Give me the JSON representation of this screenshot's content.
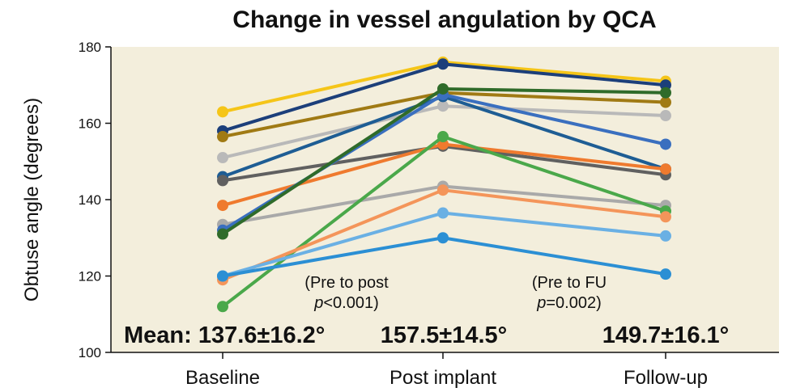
{
  "chart_data": {
    "type": "line",
    "title": "Change in vessel angulation by QCA",
    "ylabel": "Obtuse angle (degrees)",
    "xlabel": "",
    "categories": [
      "Baseline",
      "Post implant",
      "Follow-up"
    ],
    "ylim": [
      100,
      180
    ],
    "yticks": [
      100,
      120,
      140,
      160,
      180
    ],
    "grid": false,
    "background": "#f3eedc",
    "series": [
      {
        "color": "#f5c518",
        "values": [
          163,
          176,
          171
        ]
      },
      {
        "color": "#1c3f7a",
        "values": [
          158,
          175.5,
          170
        ]
      },
      {
        "color": "#a07a14",
        "values": [
          156.5,
          168,
          165.5
        ]
      },
      {
        "color": "#b9b9b9",
        "values": [
          151,
          164.5,
          162
        ]
      },
      {
        "color": "#1e5d94",
        "values": [
          146,
          167,
          148
        ]
      },
      {
        "color": "#606060",
        "values": [
          145,
          154,
          146.5
        ]
      },
      {
        "color": "#ef7a2e",
        "values": [
          138.5,
          154.5,
          148
        ]
      },
      {
        "color": "#a9a9a9",
        "values": [
          133.5,
          143.5,
          138.5
        ]
      },
      {
        "color": "#3a6fbf",
        "values": [
          132,
          167.5,
          154.5
        ]
      },
      {
        "color": "#2f6b2a",
        "values": [
          131,
          169,
          168
        ]
      },
      {
        "color": "#4aa84a",
        "values": [
          112,
          156.5,
          137
        ]
      },
      {
        "color": "#f4955a",
        "values": [
          119,
          142.5,
          135.5
        ]
      },
      {
        "color": "#6ab0e4",
        "values": [
          120,
          136.5,
          130.5
        ]
      },
      {
        "color": "#2b8fd4",
        "values": [
          120,
          130,
          120.5
        ]
      }
    ],
    "means": {
      "baseline": "Mean: 137.6±16.2°",
      "post": "157.5±14.5°",
      "followup": "149.7±16.1°"
    },
    "annotations": {
      "pre_post_line1": "(Pre to post",
      "pre_post_p": "p",
      "pre_post_rest": "<0.001)",
      "pre_fu_line1": "(Pre to FU",
      "pre_fu_p": "p",
      "pre_fu_rest": "=0.002)"
    }
  }
}
